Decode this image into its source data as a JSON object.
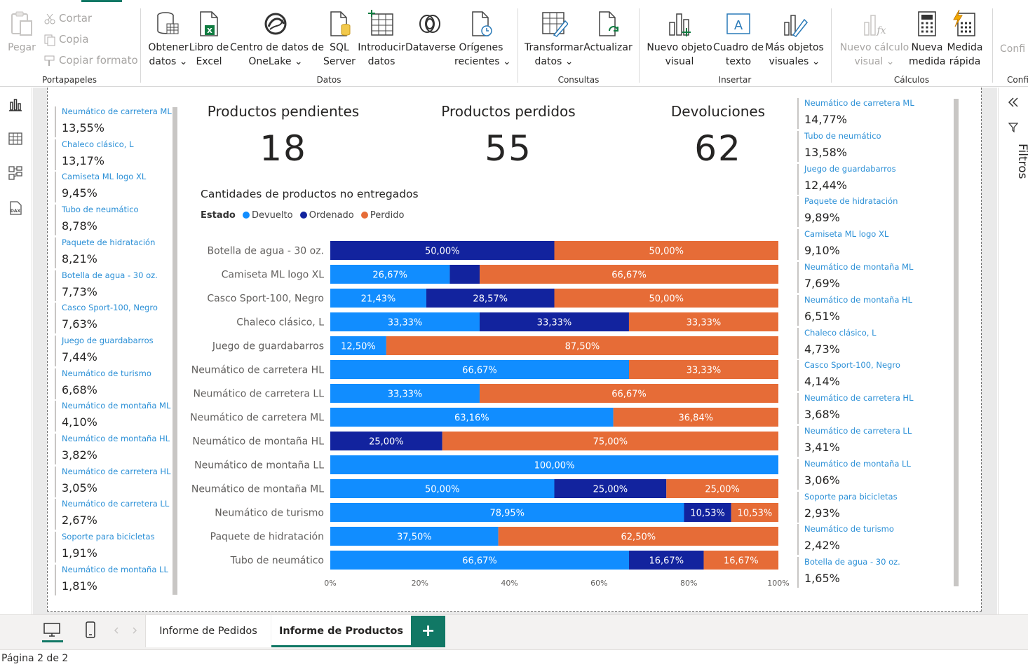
{
  "ribbon": {
    "clipboard": {
      "paste": "Pegar",
      "cut": "Cortar",
      "copy": "Copia",
      "format_painter": "Copiar formato",
      "group": "Portapapeles"
    },
    "data": {
      "get_data": "Obtener\ndatos ⌄",
      "excel": "Libro de\nExcel",
      "onelake": "Centro de datos de\nOneLake ⌄",
      "sql": "SQL\nServer",
      "enter_data": "Introducir\ndatos",
      "dataverse": "Dataverse",
      "recent": "Orígenes\nrecientes ⌄",
      "group": "Datos"
    },
    "queries": {
      "transform": "Transformar\ndatos ⌄",
      "refresh": "Actualizar",
      "group": "Consultas"
    },
    "insert": {
      "new_visual": "Nuevo objeto\nvisual",
      "text_box": "Cuadro de\ntexto",
      "more_visuals": "Más objetos\nvisuales ⌄",
      "group": "Insertar"
    },
    "calculations": {
      "new_visual_calc": "Nuevo cálculo\nvisual ⌄",
      "new_measure": "Nueva\nmedida",
      "quick_measure": "Medida\nrápida",
      "group": "Cálculos"
    },
    "config": {
      "label": "Confi",
      "group": "Confi"
    }
  },
  "left_slicer": [
    {
      "name": "Neumático de carretera ML",
      "pct": "13,55%"
    },
    {
      "name": "Chaleco clásico, L",
      "pct": "13,17%"
    },
    {
      "name": "Camiseta ML logo XL",
      "pct": "9,45%"
    },
    {
      "name": "Tubo de neumático",
      "pct": "8,78%"
    },
    {
      "name": "Paquete de hidratación",
      "pct": "8,21%"
    },
    {
      "name": "Botella de agua - 30 oz.",
      "pct": "7,73%"
    },
    {
      "name": "Casco Sport-100, Negro",
      "pct": "7,63%"
    },
    {
      "name": "Juego de guardabarros",
      "pct": "7,44%"
    },
    {
      "name": "Neumático de turismo",
      "pct": "6,68%"
    },
    {
      "name": "Neumático de montaña ML",
      "pct": "4,10%"
    },
    {
      "name": "Neumático de montaña HL",
      "pct": "3,82%"
    },
    {
      "name": "Neumático de carretera HL",
      "pct": "3,05%"
    },
    {
      "name": "Neumático de carretera LL",
      "pct": "2,67%"
    },
    {
      "name": "Soporte para bicicletas",
      "pct": "1,91%"
    },
    {
      "name": "Neumático de montaña LL",
      "pct": "1,81%"
    }
  ],
  "right_slicer": [
    {
      "name": "Neumático de carretera ML",
      "pct": "14,77%"
    },
    {
      "name": "Tubo de neumático",
      "pct": "13,58%"
    },
    {
      "name": "Juego de guardabarros",
      "pct": "12,44%"
    },
    {
      "name": "Paquete de hidratación",
      "pct": "9,89%"
    },
    {
      "name": "Camiseta ML logo XL",
      "pct": "9,10%"
    },
    {
      "name": "Neumático de montaña ML",
      "pct": "7,69%"
    },
    {
      "name": "Neumático de montaña HL",
      "pct": "6,51%"
    },
    {
      "name": "Chaleco clásico, L",
      "pct": "4,73%"
    },
    {
      "name": "Casco Sport-100, Negro",
      "pct": "4,14%"
    },
    {
      "name": "Neumático de carretera HL",
      "pct": "3,68%"
    },
    {
      "name": "Neumático de carretera LL",
      "pct": "3,41%"
    },
    {
      "name": "Neumático de montaña LL",
      "pct": "3,06%"
    },
    {
      "name": "Soporte para bicicletas",
      "pct": "2,93%"
    },
    {
      "name": "Neumático de turismo",
      "pct": "2,42%"
    },
    {
      "name": "Botella de agua - 30 oz.",
      "pct": "1,65%"
    }
  ],
  "kpis": [
    {
      "title": "Productos pendientes",
      "value": "18"
    },
    {
      "title": "Productos perdidos",
      "value": "55"
    },
    {
      "title": "Devoluciones",
      "value": "62"
    }
  ],
  "chart": {
    "title": "Cantidades de productos no entregados",
    "legend_title": "Estado",
    "legend": [
      {
        "label": "Devuelto",
        "color": "#118DFF"
      },
      {
        "label": "Ordenado",
        "color": "#12239E"
      },
      {
        "label": "Perdido",
        "color": "#E66C37"
      }
    ]
  },
  "chart_data": {
    "type": "bar",
    "orientation": "horizontal",
    "stacked": "100%",
    "categories": [
      "Botella de agua - 30 oz.",
      "Camiseta ML logo XL",
      "Casco Sport-100, Negro",
      "Chaleco clásico, L",
      "Juego de guardabarros",
      "Neumático de carretera HL",
      "Neumático de carretera LL",
      "Neumático de carretera ML",
      "Neumático de montaña HL",
      "Neumático de montaña LL",
      "Neumático de montaña ML",
      "Neumático de turismo",
      "Paquete de hidratación",
      "Tubo de neumático"
    ],
    "series": [
      {
        "name": "Devuelto",
        "color": "#118DFF",
        "values": [
          0,
          26.67,
          21.43,
          33.33,
          12.5,
          66.67,
          33.33,
          63.16,
          0,
          100,
          50,
          78.95,
          37.5,
          66.67
        ]
      },
      {
        "name": "Ordenado",
        "color": "#12239E",
        "values": [
          50,
          6.67,
          28.57,
          33.33,
          0,
          0,
          0,
          0,
          25,
          0,
          25,
          10.53,
          0,
          16.67
        ]
      },
      {
        "name": "Perdido",
        "color": "#E66C37",
        "values": [
          50,
          66.67,
          50,
          33.33,
          87.5,
          33.33,
          66.67,
          36.84,
          75,
          0,
          25,
          10.53,
          62.5,
          16.67
        ]
      }
    ],
    "labels": [
      [
        "",
        "50,00%",
        "50,00%"
      ],
      [
        "26,67%",
        "",
        "66,67%"
      ],
      [
        "21,43%",
        "28,57%",
        "50,00%"
      ],
      [
        "33,33%",
        "33,33%",
        "33,33%"
      ],
      [
        "12,50%",
        "",
        "87,50%"
      ],
      [
        "66,67%",
        "",
        "33,33%"
      ],
      [
        "33,33%",
        "",
        "66,67%"
      ],
      [
        "63,16%",
        "",
        "36,84%"
      ],
      [
        "",
        "25,00%",
        "75,00%"
      ],
      [
        "100,00%",
        "",
        ""
      ],
      [
        "50,00%",
        "25,00%",
        "25,00%"
      ],
      [
        "78,95%",
        "10,53%",
        "10,53%"
      ],
      [
        "37,50%",
        "",
        "62,50%"
      ],
      [
        "66,67%",
        "16,67%",
        "16,67%"
      ]
    ],
    "x_ticks": [
      "0%",
      "20%",
      "40%",
      "60%",
      "80%",
      "100%"
    ],
    "xlim": [
      0,
      100
    ]
  },
  "filters": {
    "label": "Filtros"
  },
  "tabs": {
    "items": [
      "Informe de Pedidos",
      "Informe de Productos"
    ],
    "active": "Informe de Productos",
    "add": "+"
  },
  "status": {
    "page": "Página 2 de 2"
  }
}
